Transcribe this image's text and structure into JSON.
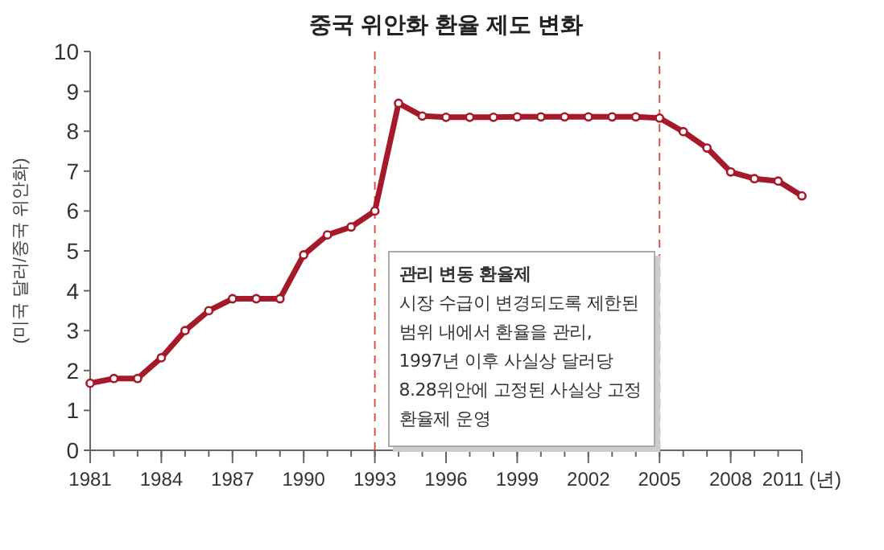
{
  "chart_data": {
    "type": "line",
    "title": "중국 위안화 환율 제도 변화",
    "ylabel": "(미국 달러/중국 위안화)",
    "x": [
      1981,
      1982,
      1983,
      1984,
      1985,
      1986,
      1987,
      1988,
      1989,
      1990,
      1991,
      1992,
      1993,
      1994,
      1995,
      1996,
      1997,
      1998,
      1999,
      2000,
      2001,
      2002,
      2003,
      2004,
      2005,
      2006,
      2007,
      2008,
      2009,
      2010,
      2011
    ],
    "series": [
      {
        "color": "#a5192a",
        "values": [
          1.68,
          1.8,
          1.8,
          2.32,
          3.0,
          3.5,
          3.8,
          3.8,
          3.8,
          4.9,
          5.4,
          5.6,
          6.0,
          8.7,
          8.38,
          8.35,
          8.35,
          8.35,
          8.36,
          8.36,
          8.36,
          8.36,
          8.36,
          8.36,
          8.33,
          7.99,
          7.58,
          6.98,
          6.81,
          6.75,
          6.38
        ]
      }
    ],
    "xlim": [
      1981,
      2011
    ],
    "xticks": [
      1981,
      1984,
      1987,
      1990,
      1993,
      1996,
      1999,
      2002,
      2005,
      2008,
      {
        "value": 2011,
        "label": "2011 (년)"
      }
    ],
    "ylim": [
      0,
      10
    ],
    "yticks": [
      0,
      1,
      2,
      3,
      4,
      5,
      6,
      7,
      8,
      9,
      10
    ],
    "ref_lines": [
      {
        "axis": "x",
        "value": 1993,
        "color": "#d9534f",
        "line_style": "dashed"
      },
      {
        "axis": "x",
        "value": 2005,
        "color": "#d9534f",
        "line_style": "dashed"
      }
    ],
    "annotations": [
      "관리 변동 환율제",
      "시장 수급이 변경되도록 제한된 범위 내에서 환율을 관리, 1997년 이후 사실상 달러당 8.28위안에 고정된 사실상 고정 환율제 운영"
    ],
    "marker": "circle",
    "line_style": "solid",
    "grid": false
  }
}
